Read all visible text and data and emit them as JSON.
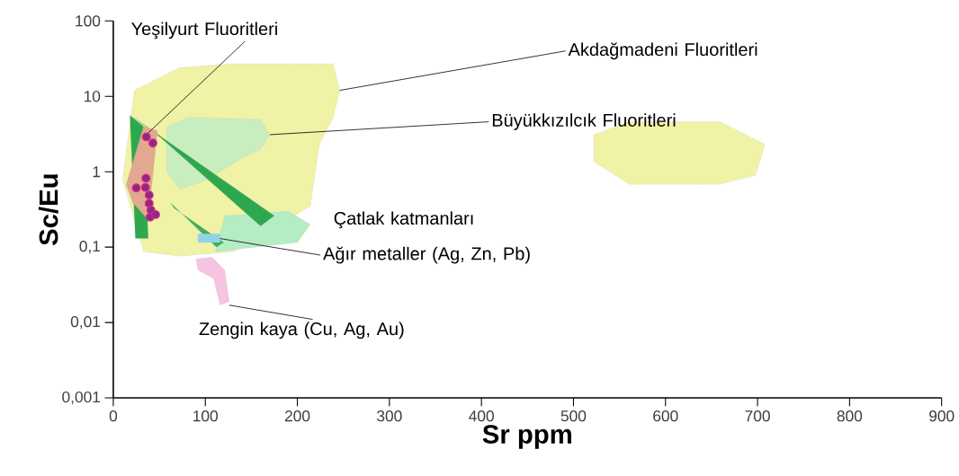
{
  "chart_data": {
    "type": "scatter",
    "xlabel": "Sr ppm",
    "ylabel": "Sc/Eu",
    "xlim": [
      0,
      900
    ],
    "xticks": [
      0,
      100,
      200,
      300,
      400,
      500,
      600,
      700,
      800,
      900
    ],
    "ylim": [
      0.001,
      100
    ],
    "log": "y",
    "yticks": [
      {
        "value": 0.001,
        "label": "0,001"
      },
      {
        "value": 0.01,
        "label": "0,01"
      },
      {
        "value": 0.1,
        "label": "0,1"
      },
      1,
      10,
      100
    ],
    "grid": false,
    "series": [
      {
        "type": "area",
        "color": "#f0f2a6",
        "x": [
          23,
          72,
          131,
          239,
          246,
          239,
          224,
          214,
          131,
          72,
          33,
          10
        ],
        "values": [
          12,
          24,
          27,
          27,
          12,
          5.3,
          2.3,
          0.35,
          0.087,
          0.076,
          0.087,
          0.8
        ]
      },
      {
        "type": "area",
        "color": "#f0f2a6",
        "x": [
          522,
          561,
          659,
          708,
          698,
          659,
          561,
          522
        ],
        "values": [
          3.1,
          4.6,
          4.6,
          2.3,
          0.9,
          0.68,
          0.68,
          1.35
        ]
      },
      {
        "type": "area",
        "color": "#c8eec0",
        "x": [
          58,
          82,
          160,
          170,
          160,
          141,
          102,
          72,
          58
        ],
        "values": [
          4.0,
          5.3,
          4.9,
          3.1,
          2.0,
          1.55,
          0.78,
          0.59,
          1.0
        ]
      },
      {
        "type": "area",
        "color": "#b4ecc4",
        "x": [
          121,
          190,
          214,
          200,
          111
        ],
        "values": [
          0.26,
          0.3,
          0.2,
          0.115,
          0.087
        ]
      },
      {
        "type": "area",
        "color": "#2ea84e",
        "x": [
          18,
          33,
          38,
          24
        ],
        "values": [
          5.6,
          4.0,
          0.13,
          0.13
        ]
      },
      {
        "type": "area",
        "color": "#2ea84e",
        "x": [
          19,
          175,
          160,
          52
        ],
        "values": [
          5.6,
          0.26,
          0.19,
          2.8
        ]
      },
      {
        "type": "area",
        "color": "#3cb05a",
        "x": [
          62,
          66,
          120,
          112
        ],
        "values": [
          0.39,
          0.33,
          0.115,
          0.1
        ]
      },
      {
        "type": "area",
        "color": "#e2a890",
        "x": [
          14,
          33,
          48,
          38,
          21
        ],
        "values": [
          0.68,
          4.0,
          3.5,
          0.23,
          0.39
        ]
      },
      {
        "type": "area",
        "color": "#8ed6e6",
        "x": [
          92,
          116,
          116,
          92
        ],
        "values": [
          0.15,
          0.15,
          0.115,
          0.115
        ]
      },
      {
        "type": "area",
        "color": "#f6c4e0",
        "x": [
          90,
          107,
          121,
          126,
          116,
          109,
          92
        ],
        "values": [
          0.07,
          0.074,
          0.05,
          0.019,
          0.017,
          0.038,
          0.05
        ]
      },
      {
        "marker": "circle",
        "color": "#8a2a8a",
        "x": [
          36,
          43,
          35.5,
          25,
          35,
          39,
          39,
          41,
          40,
          46
        ],
        "values": [
          2.9,
          2.4,
          0.82,
          0.61,
          0.62,
          0.49,
          0.38,
          0.31,
          0.25,
          0.27
        ]
      }
    ],
    "annotations": [
      {
        "text": "Yeşilyurt Fluoritleri",
        "x": 36,
        "y": 3.1
      },
      {
        "text": "Akdağmadeni Fluoritleri",
        "x": 246,
        "y": 12
      },
      {
        "text": "Büyükkızılcık Fluoritleri",
        "x": 170,
        "y": 3.1
      },
      "Çatlak katmanları",
      {
        "text": "Ağır metaller (Ag, Zn, Pb)",
        "x": 116,
        "y": 0.13
      },
      {
        "text": "Zengin kaya (Cu, Ag, Au)",
        "x": 126,
        "y": 0.017
      }
    ]
  }
}
